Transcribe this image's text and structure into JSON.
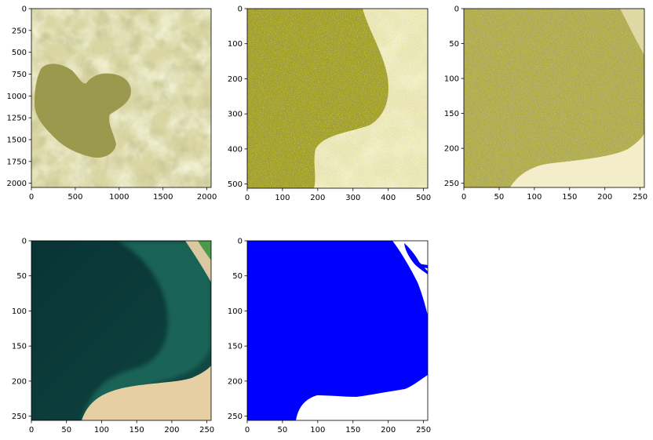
{
  "chart_data": [
    {
      "type": "image",
      "xticks": [
        0,
        500,
        1000,
        1500,
        2000
      ],
      "yticks": [
        0,
        250,
        500,
        750,
        1000,
        1250,
        1500,
        1750,
        2000
      ],
      "xlim": [
        0,
        2048
      ],
      "ylim": [
        2048,
        0
      ],
      "content": "Satellite scene, pale yellow-green terrain with a darker olive lake region"
    },
    {
      "type": "image",
      "xticks": [
        0,
        100,
        200,
        300,
        400,
        500
      ],
      "yticks": [
        0,
        100,
        200,
        300,
        400,
        500
      ],
      "xlim": [
        0,
        512
      ],
      "ylim": [
        512,
        0
      ],
      "content": "Zoomed crop, speckled yellow water area and lighter shoreline on the right"
    },
    {
      "type": "image",
      "xticks": [
        0,
        50,
        100,
        150,
        200,
        250
      ],
      "yticks": [
        0,
        50,
        100,
        150,
        200,
        250
      ],
      "xlim": [
        0,
        256
      ],
      "ylim": [
        256,
        0
      ],
      "content": "Further zoomed crop, speckled yellow texture with light shore at bottom"
    },
    {
      "type": "image",
      "xticks": [
        0,
        50,
        100,
        150,
        200,
        250
      ],
      "yticks": [
        0,
        50,
        100,
        150,
        200,
        250
      ],
      "xlim": [
        0,
        256
      ],
      "ylim": [
        256,
        0
      ],
      "content": "True-color crop, dark teal water with green shallows and sandy shore"
    },
    {
      "type": "image",
      "xticks": [
        0,
        50,
        100,
        150,
        200,
        250
      ],
      "yticks": [
        0,
        50,
        100,
        150,
        200,
        250
      ],
      "xlim": [
        0,
        256
      ],
      "ylim": [
        256,
        0
      ],
      "content": "Binary water mask, blue water and white land"
    }
  ],
  "colors": {
    "mask_water": "#0000ff",
    "mask_land": "#ffffff",
    "true_color_water": "#0d3a3a",
    "sand": "#ead3a5",
    "yellow_tint": "#d8d27a"
  }
}
